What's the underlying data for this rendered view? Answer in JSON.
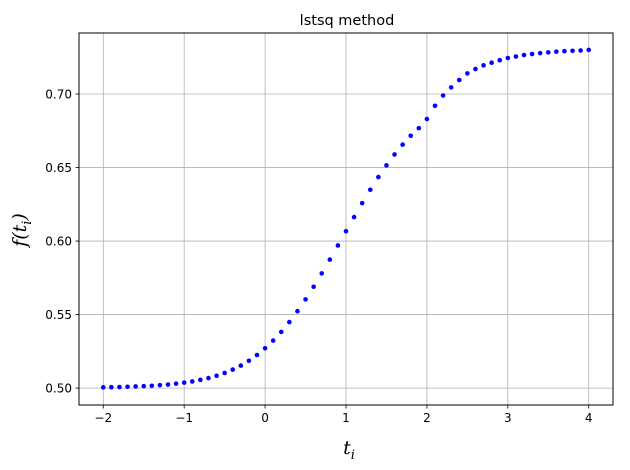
{
  "chart_data": {
    "type": "scatter",
    "title": "lstsq method",
    "xlabel": {
      "base": "t",
      "sub": "i"
    },
    "ylabel": {
      "func": "f(",
      "base": "t",
      "sub": "i",
      "close": ")"
    },
    "xlim": [
      -2.3,
      4.3
    ],
    "ylim": [
      0.4885,
      0.7415
    ],
    "xticks": [
      -2,
      -1,
      0,
      1,
      2,
      3,
      4
    ],
    "xtick_labels": [
      "−2",
      "−1",
      "0",
      "1",
      "2",
      "3",
      "4"
    ],
    "yticks": [
      0.5,
      0.55,
      0.6,
      0.65,
      0.7
    ],
    "ytick_labels": [
      "0.50",
      "0.55",
      "0.60",
      "0.65",
      "0.70"
    ],
    "grid": true,
    "marker_color": "#0000ff",
    "series": [
      {
        "x": [
          -2.0,
          -1.9,
          -1.8,
          -1.7,
          -1.6,
          -1.5,
          -1.4,
          -1.3,
          -1.2,
          -1.1,
          -1.0,
          -0.9,
          -0.8,
          -0.7,
          -0.6,
          -0.5,
          -0.4,
          -0.3,
          -0.2,
          -0.1,
          0.0,
          0.1,
          0.2,
          0.3,
          0.4,
          0.5,
          0.6,
          0.7,
          0.8,
          0.9,
          1.0,
          1.1,
          1.2,
          1.3,
          1.4,
          1.5,
          1.6,
          1.7,
          1.8,
          1.9,
          2.0,
          2.1,
          2.2,
          2.3,
          2.4,
          2.5,
          2.6,
          2.7,
          2.8,
          2.9,
          3.0,
          3.1,
          3.2,
          3.3,
          3.4,
          3.5,
          3.6,
          3.7,
          3.8,
          3.9,
          4.0
        ],
        "y": [
          0.5005,
          0.5006,
          0.5007,
          0.5009,
          0.5011,
          0.5013,
          0.5016,
          0.502,
          0.5024,
          0.503,
          0.5037,
          0.5045,
          0.5056,
          0.5068,
          0.5084,
          0.5103,
          0.5126,
          0.5153,
          0.5186,
          0.5225,
          0.5271,
          0.5323,
          0.5382,
          0.5449,
          0.5523,
          0.5603,
          0.5689,
          0.578,
          0.5874,
          0.597,
          0.6067,
          0.6163,
          0.6258,
          0.6349,
          0.6435,
          0.6515,
          0.6589,
          0.6656,
          0.6716,
          0.6768,
          0.683,
          0.692,
          0.699,
          0.7045,
          0.7095,
          0.714,
          0.717,
          0.7195,
          0.7213,
          0.723,
          0.7245,
          0.7255,
          0.7265,
          0.7272,
          0.7278,
          0.7283,
          0.7288,
          0.7291,
          0.7294,
          0.7296,
          0.73
        ]
      }
    ]
  }
}
